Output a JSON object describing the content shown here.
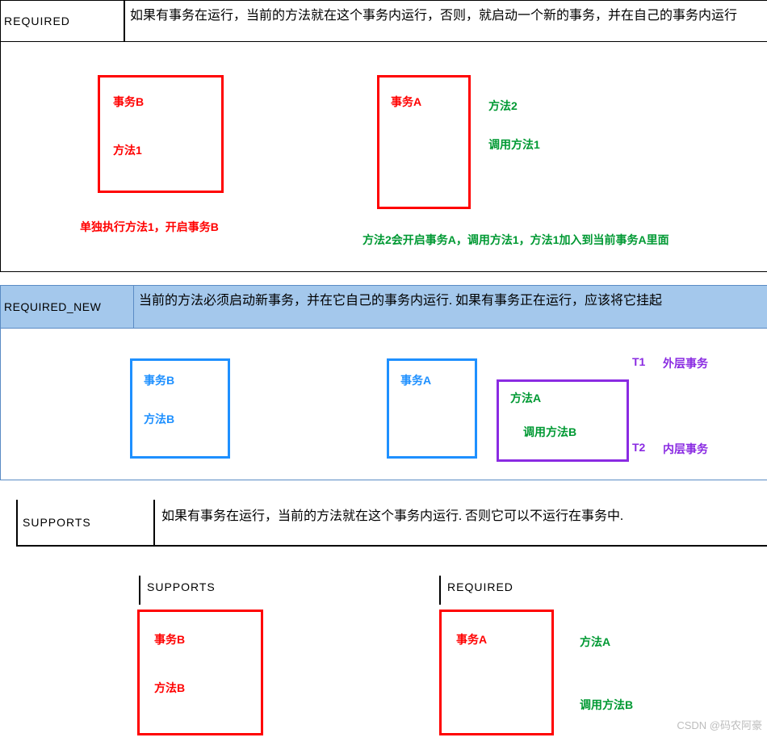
{
  "colors": {
    "red": "#ff0000",
    "green": "#009933",
    "blue": "#1e90ff",
    "purple": "#8a2be2",
    "headerBlue": "#a4c8ec"
  },
  "sec1": {
    "title": "REQUIRED",
    "desc": "如果有事务在运行，当前的方法就在这个事务内运行，否则，就启动一个新的事务，并在自己的事务内运行",
    "boxB": {
      "l1": "事务B",
      "l2": "方法1"
    },
    "cap1": "单独执行方法1，开启事务B",
    "boxA": {
      "l1": "事务A"
    },
    "m2a": "方法2",
    "m2b": "调用方法1",
    "cap2": "方法2会开启事务A，调用方法1，方法1加入到当前事务A里面"
  },
  "sec2": {
    "title": "REQUIRED_NEW",
    "desc": "当前的方法必须启动新事务，并在它自己的事务内运行. 如果有事务正在运行，应该将它挂起",
    "boxB": {
      "l1": "事务B",
      "l2": "方法B"
    },
    "boxA": {
      "l1": "事务A"
    },
    "boxP": {
      "l1": "方法A",
      "l2": "调用方法B"
    },
    "t1": "T1",
    "t1b": "外层事务",
    "t2": "T2",
    "t2b": "内层事务"
  },
  "sec3": {
    "title": "SUPPORTS",
    "desc": "如果有事务在运行，当前的方法就在这个事务内运行. 否则它可以不运行在事务中.",
    "lbl1": "SUPPORTS",
    "lbl2": "REQUIRED",
    "boxB": {
      "l1": "事务B",
      "l2": "方法B"
    },
    "boxA": {
      "l1": "事务A"
    },
    "m2a": "方法A",
    "m2b": "调用方法B"
  },
  "watermark": "CSDN @码农阿豪"
}
